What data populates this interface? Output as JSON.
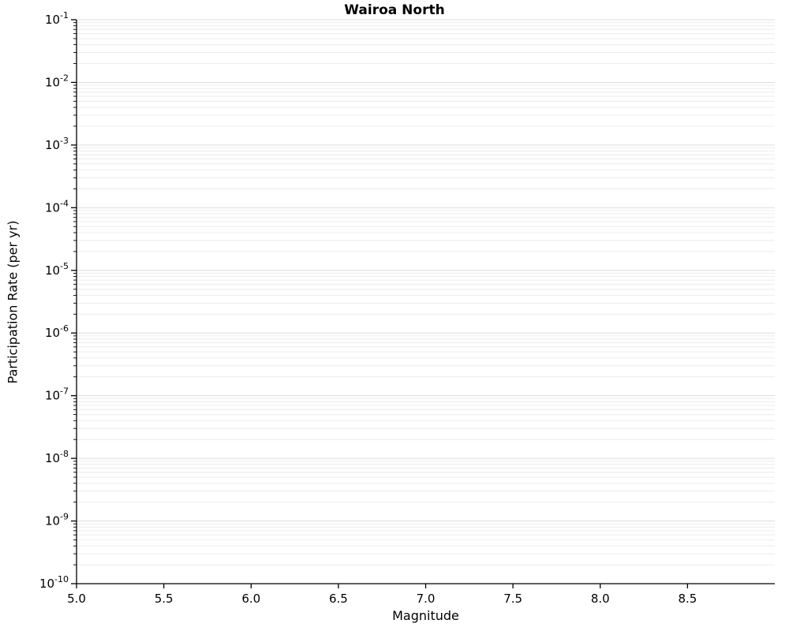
{
  "chart_data": {
    "type": "line",
    "title": "Wairoa North",
    "xlabel": "Magnitude",
    "ylabel": "Participation Rate (per yr)",
    "x_axis": {
      "scale": "linear",
      "min": 5.0,
      "max": 9.0,
      "ticks": [
        {
          "value": 5.0,
          "label": "5.0"
        },
        {
          "value": 5.5,
          "label": "5.5"
        },
        {
          "value": 6.0,
          "label": "6.0"
        },
        {
          "value": 6.5,
          "label": "6.5"
        },
        {
          "value": 7.0,
          "label": "7.0"
        },
        {
          "value": 7.5,
          "label": "7.5"
        },
        {
          "value": 8.0,
          "label": "8.0"
        },
        {
          "value": 8.5,
          "label": "8.5"
        }
      ]
    },
    "y_axis": {
      "scale": "log",
      "min": 1e-10,
      "max": 0.1,
      "tick_label_base": "10",
      "tick_exponents": [
        -1,
        -2,
        -3,
        -4,
        -5,
        -6,
        -7,
        -8,
        -9,
        -10
      ]
    },
    "grid": {
      "horizontal": true,
      "vertical": false,
      "minor_color": "#ececec",
      "major_color": "#dddddd"
    },
    "series": [],
    "colors": {
      "background": "#ffffff",
      "axis": "#000000",
      "text": "#000000"
    }
  }
}
